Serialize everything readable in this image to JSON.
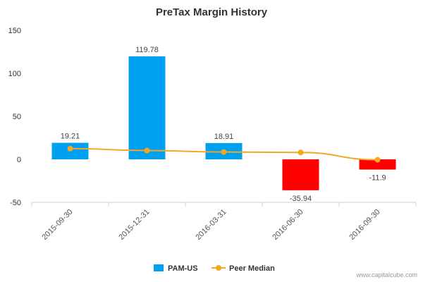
{
  "chart_data": {
    "type": "bar",
    "title": "PreTax Margin History",
    "xlabel": "",
    "ylabel": "",
    "categories": [
      "2015-09-30",
      "2015-12-31",
      "2016-03-31",
      "2016-06-30",
      "2016-09-30"
    ],
    "ylim": [
      -50,
      150
    ],
    "yticks": [
      -50,
      0,
      50,
      100,
      150
    ],
    "series": [
      {
        "name": "PAM-US",
        "kind": "bar",
        "values": [
          19.21,
          119.78,
          18.91,
          -35.94,
          -11.9
        ],
        "labels": [
          "19.21",
          "119.78",
          "18.91",
          "-35.94",
          "-11.9"
        ],
        "color_positive": "#00a0f0",
        "color_negative": "#ff0000"
      },
      {
        "name": "Peer Median",
        "kind": "line",
        "values": [
          12.5,
          10.2,
          8.5,
          8.0,
          -0.5
        ],
        "color": "#f5a623"
      }
    ],
    "legend_position": "bottom-center",
    "grid": false
  },
  "footer": {
    "source": "www.capitalcube.com"
  }
}
